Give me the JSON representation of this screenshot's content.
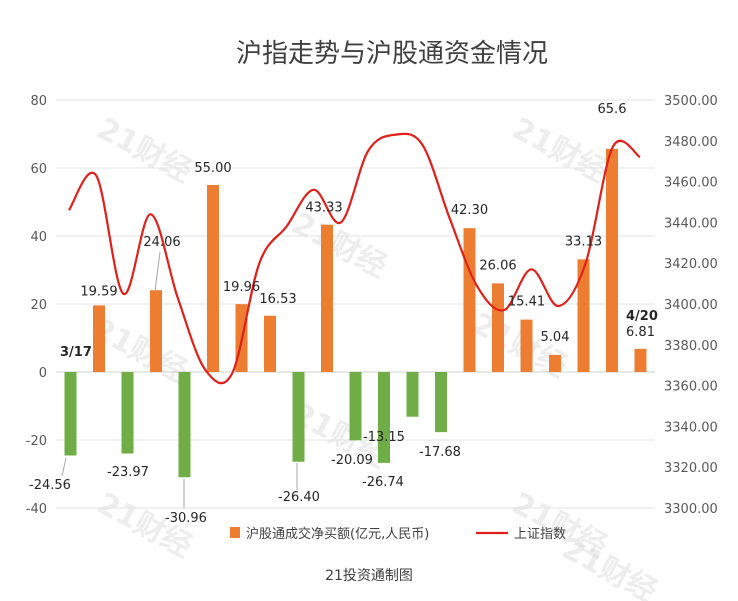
{
  "chart_data": {
    "type": "bar+line",
    "title": "沪指走势与沪股通资金情况",
    "source_note": "21投资通制图",
    "watermark": "21财经",
    "left_axis": {
      "min": -40,
      "max": 80,
      "ticks": [
        "-40",
        "-20",
        "0",
        "20",
        "40",
        "60",
        "80"
      ]
    },
    "right_axis": {
      "min": 3300,
      "max": 3500,
      "ticks": [
        "3300.00",
        "3320.00",
        "3340.00",
        "3360.00",
        "3380.00",
        "3400.00",
        "3420.00",
        "3440.00",
        "3460.00",
        "3480.00",
        "3500.00"
      ]
    },
    "date_labels": [
      "3/17",
      "4/20"
    ],
    "series": [
      {
        "name": "沪股通成交净买额(亿元,人民币)",
        "kind": "bar",
        "positive_color": "#ED7D31",
        "negative_color": "#70AD47",
        "values": [
          -24.56,
          19.59,
          -23.97,
          24.06,
          -30.96,
          55.0,
          19.96,
          16.53,
          -26.4,
          43.33,
          -20.09,
          -26.74,
          -13.15,
          -17.68,
          42.3,
          26.06,
          15.41,
          5.04,
          33.13,
          65.6,
          6.81
        ],
        "labels": [
          "-24.56",
          "19.59",
          "-23.97",
          "24.06",
          "-30.96",
          "55.00",
          "19.96",
          "16.53",
          "-26.40",
          "43.33",
          "-20.09",
          "-26.74",
          "-13.15",
          "-17.68",
          "42.30",
          "26.06",
          "15.41",
          "5.04",
          "33.13",
          "65.6",
          "6.81"
        ]
      },
      {
        "name": "上证指数",
        "kind": "line",
        "color": "#E0201B",
        "values": [
          3446,
          3463,
          3405,
          3444,
          3403,
          3368,
          3366,
          3420,
          3438,
          3456,
          3440,
          3475,
          3483,
          3478,
          3442,
          3409,
          3397,
          3417,
          3399,
          3420,
          3477,
          3472
        ]
      }
    ]
  }
}
